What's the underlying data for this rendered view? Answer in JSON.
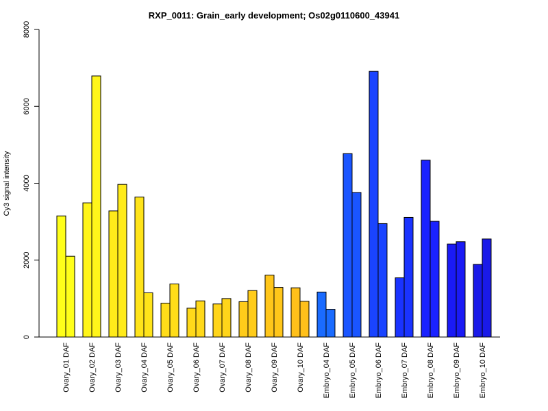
{
  "chart_data": {
    "type": "bar",
    "title": "RXP_0011: Grain_early development; Os02g0110600_43941",
    "xlabel": "",
    "ylabel": "Cy3 signal intensity",
    "ylim": [
      0,
      8000
    ],
    "yticks": [
      0,
      2000,
      4000,
      6000,
      8000
    ],
    "grid": false,
    "legend": "none",
    "categories": [
      "Ovary_01 DAF",
      "Ovary_02 DAF",
      "Ovary_03 DAF",
      "Ovary_04 DAF",
      "Ovary_05 DAF",
      "Ovary_06 DAF",
      "Ovary_07 DAF",
      "Ovary_08 DAF",
      "Ovary_09 DAF",
      "Ovary_10 DAF",
      "Embryo_04 DAF",
      "Embryo_05 DAF",
      "Embryo_06 DAF",
      "Embryo_07 DAF",
      "Embryo_08 DAF",
      "Embryo_09 DAF",
      "Embryo_10 DAF"
    ],
    "replicates": [
      [
        3150,
        2100
      ],
      [
        3490,
        6790
      ],
      [
        3280,
        3970
      ],
      [
        3640,
        1150
      ],
      [
        880,
        1380
      ],
      [
        750,
        940
      ],
      [
        860,
        1000
      ],
      [
        920,
        1210
      ],
      [
        1610,
        1290
      ],
      [
        1280,
        930
      ],
      [
        1170,
        720
      ],
      [
        4770,
        3760
      ],
      [
        6910,
        2950
      ],
      [
        1540,
        3110
      ],
      [
        4600,
        3010
      ],
      [
        2420,
        2480
      ],
      [
        1890,
        2550
      ]
    ],
    "colors": [
      "#FFFF1A",
      "#FFF51A",
      "#FFEB1A",
      "#FFE41A",
      "#FFDD1A",
      "#FFD91A",
      "#FFD51A",
      "#FFCC1A",
      "#FFC61A",
      "#FFC01A",
      "#1A6BFF",
      "#1A55FF",
      "#1A44FF",
      "#1A33FF",
      "#1A22FF",
      "#1A1AF5",
      "#1A1AE8"
    ]
  }
}
